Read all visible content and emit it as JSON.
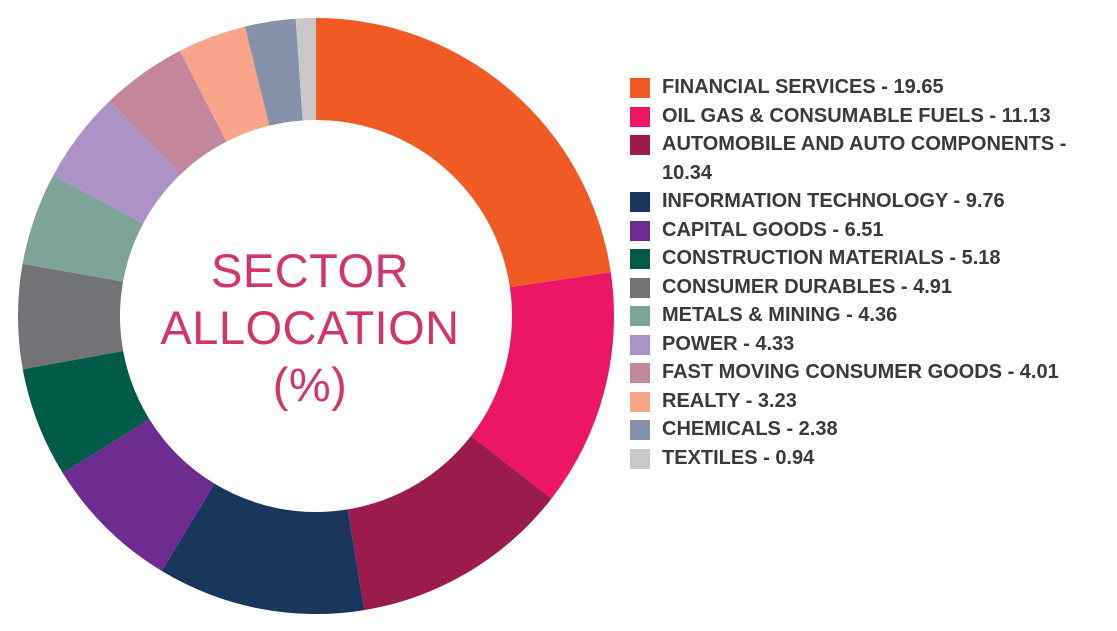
{
  "center_title": {
    "line1": "SECTOR",
    "line2": "ALLOCATION",
    "line3": "(%)"
  },
  "chart_data": {
    "type": "pie",
    "style": "donut",
    "legend_position": "right",
    "series": [
      {
        "label": "FINANCIAL SERVICES - 19.65",
        "value": 19.65,
        "color": "#f15a24"
      },
      {
        "label": "OIL GAS & CONSUMABLE FUELS - 11.13",
        "value": 11.13,
        "color": "#ed1566"
      },
      {
        "label": "AUTOMOBILE AND AUTO COMPONENTS - 10.34",
        "value": 10.34,
        "color": "#9b1b4e"
      },
      {
        "label": "INFORMATION TECHNOLOGY - 9.76",
        "value": 9.76,
        "color": "#1b365d"
      },
      {
        "label": "CAPITAL GOODS - 6.51",
        "value": 6.51,
        "color": "#6e2c91"
      },
      {
        "label": "CONSTRUCTION MATERIALS - 5.18",
        "value": 5.18,
        "color": "#005b48"
      },
      {
        "label": "CONSUMER DURABLES - 4.91",
        "value": 4.91,
        "color": "#727376"
      },
      {
        "label": "METALS & MINING - 4.36",
        "value": 4.36,
        "color": "#7fa399"
      },
      {
        "label": "POWER - 4.33",
        "value": 4.33,
        "color": "#ad92c5"
      },
      {
        "label": "FAST MOVING CONSUMER GOODS - 4.01",
        "value": 4.01,
        "color": "#c4869d"
      },
      {
        "label": "REALTY - 3.23",
        "value": 3.23,
        "color": "#f7a48a"
      },
      {
        "label": "CHEMICALS - 2.38",
        "value": 2.38,
        "color": "#8591a8"
      },
      {
        "label": "TEXTILES - 0.94",
        "value": 0.94,
        "color": "#c8c8c8"
      }
    ]
  }
}
